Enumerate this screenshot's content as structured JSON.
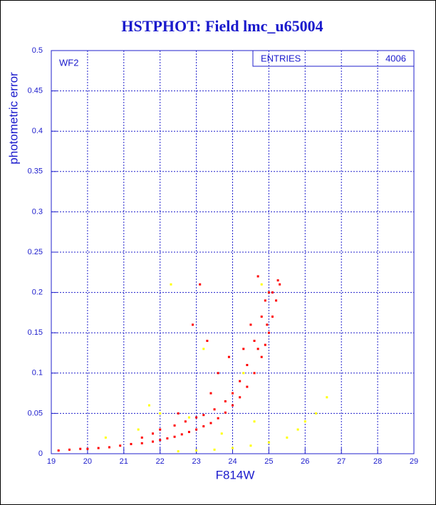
{
  "chart_data": {
    "type": "scatter",
    "title": "HSTPHOT: Field lmc_u65004",
    "x_label": "F814W",
    "y_label": "photometric error",
    "annotation": "WF2",
    "stats": {
      "label": "ENTRIES",
      "value": 4006
    },
    "xlim": [
      19,
      29
    ],
    "xticks": [
      19,
      20,
      21,
      22,
      23,
      24,
      25,
      26,
      27,
      28,
      29
    ],
    "ylim": [
      0,
      0.5
    ],
    "yticks": [
      0,
      0.05,
      0.1,
      0.15,
      0.2,
      0.25,
      0.3,
      0.35,
      0.4,
      0.45,
      0.5
    ],
    "grid": true,
    "series": [
      {
        "color": "#ffff00",
        "x": [
          22.5,
          23.0,
          23.5,
          24.0,
          24.5,
          25.0,
          25.5,
          25.8,
          26.0,
          26.3,
          26.6,
          22.3,
          24.8,
          25.0,
          23.2,
          24.3,
          21.7,
          22.0,
          21.4,
          20.5,
          23.7,
          24.6,
          22.8
        ],
        "values": [
          0.003,
          0.004,
          0.005,
          0.007,
          0.01,
          0.014,
          0.02,
          0.03,
          0.04,
          0.05,
          0.07,
          0.21,
          0.21,
          0.2,
          0.13,
          0.1,
          0.06,
          0.05,
          0.03,
          0.02,
          0.025,
          0.04,
          0.045
        ]
      },
      {
        "color": "#ff0000",
        "x": [
          19.2,
          19.5,
          19.8,
          20.0,
          20.3,
          20.6,
          20.9,
          21.2,
          21.5,
          21.8,
          22.0,
          22.2,
          22.4,
          22.6,
          22.8,
          23.0,
          23.2,
          23.4,
          23.6,
          23.8,
          24.0,
          24.2,
          24.4,
          24.6,
          24.8,
          24.9,
          25.0,
          25.1,
          25.2,
          25.3,
          25.25,
          25.0,
          24.8,
          24.6,
          24.4,
          24.2,
          24.0,
          23.8,
          23.5,
          23.2,
          23.0,
          22.7,
          22.4,
          22.0,
          21.8,
          21.5,
          24.7,
          24.5,
          23.9,
          23.3,
          23.1,
          22.9,
          23.6,
          24.3,
          22.5,
          23.4,
          24.9,
          25.1,
          24.95,
          24.7
        ],
        "values": [
          0.004,
          0.005,
          0.006,
          0.006,
          0.007,
          0.008,
          0.01,
          0.012,
          0.013,
          0.015,
          0.017,
          0.019,
          0.021,
          0.024,
          0.027,
          0.03,
          0.034,
          0.038,
          0.044,
          0.051,
          0.06,
          0.07,
          0.083,
          0.1,
          0.12,
          0.135,
          0.15,
          0.17,
          0.19,
          0.21,
          0.215,
          0.2,
          0.17,
          0.14,
          0.11,
          0.09,
          0.075,
          0.065,
          0.055,
          0.048,
          0.045,
          0.04,
          0.035,
          0.03,
          0.025,
          0.02,
          0.22,
          0.16,
          0.12,
          0.14,
          0.21,
          0.16,
          0.1,
          0.13,
          0.05,
          0.075,
          0.19,
          0.2,
          0.16,
          0.13
        ]
      }
    ]
  }
}
